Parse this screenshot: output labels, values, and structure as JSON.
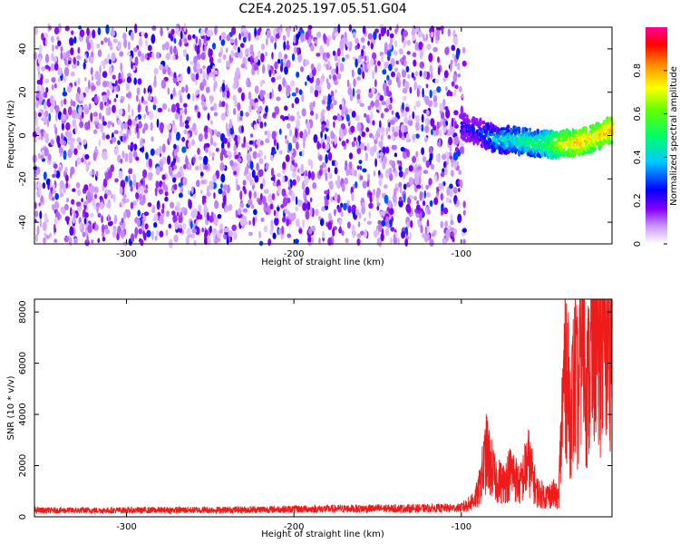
{
  "title": "C2E4.2025.197.05.51.G04",
  "colors": {
    "snr_line": "#ee1b1b",
    "frame": "#000000"
  },
  "chart_data": [
    {
      "type": "heatmap",
      "xlabel": "Height of straight line (km)",
      "ylabel": "Frequency (Hz)",
      "xlim": [
        -355,
        -10
      ],
      "ylim": [
        -50,
        50
      ],
      "x_ticks": [
        -300,
        -200,
        -100
      ],
      "y_ticks": [
        -40,
        -20,
        0,
        20,
        40
      ],
      "colorbar": {
        "label": "Normalized spectral amplitude",
        "range": [
          0,
          1
        ],
        "ticks": [
          0,
          0.2,
          0.4,
          0.6,
          0.8
        ],
        "colormap": [
          "#ffffff",
          "#8800ff",
          "#0000ff",
          "#00ffff",
          "#00ff00",
          "#ffff00",
          "#ff0000",
          "#ff00aa"
        ]
      },
      "noise_region": {
        "x_range": [
          -355,
          -98
        ],
        "typical_amplitude": [
          0.05,
          0.25
        ]
      },
      "signal_ridge": {
        "description": "frequency ridge of the signal",
        "x": [
          -100,
          -90,
          -80,
          -70,
          -60,
          -50,
          -40,
          -30,
          -20,
          -10
        ],
        "freq_hz": [
          4,
          2,
          -2,
          -2,
          -3,
          -4,
          -4,
          -3,
          -1,
          3
        ],
        "amplitude": [
          0.3,
          0.35,
          0.45,
          0.5,
          0.55,
          0.6,
          0.75,
          0.85,
          0.8,
          0.85
        ]
      }
    },
    {
      "type": "line",
      "xlabel": "Height of straight line (km)",
      "ylabel": "SNR (10 * v/v)",
      "xlim": [
        -355,
        -10
      ],
      "ylim": [
        0,
        8500
      ],
      "x_ticks": [
        -300,
        -200,
        -100
      ],
      "y_ticks": [
        0,
        2000,
        4000,
        6000,
        8000
      ],
      "series": [
        {
          "x": [
            -355,
            -320,
            -280,
            -240,
            -200,
            -160,
            -120,
            -100,
            -95,
            -90,
            -85,
            -80,
            -75,
            -70,
            -65,
            -60,
            -55,
            -50,
            -45,
            -42,
            -38,
            -35,
            -32,
            -30,
            -28,
            -25,
            -22,
            -20,
            -18,
            -15,
            -12,
            -10
          ],
          "y": [
            250,
            250,
            260,
            270,
            300,
            320,
            330,
            350,
            500,
            900,
            2500,
            1500,
            1300,
            1800,
            1200,
            2200,
            1000,
            800,
            900,
            700,
            6500,
            4000,
            5500,
            4500,
            8000,
            4800,
            6500,
            7800,
            6000,
            7500,
            6800,
            7800
          ]
        }
      ]
    }
  ]
}
